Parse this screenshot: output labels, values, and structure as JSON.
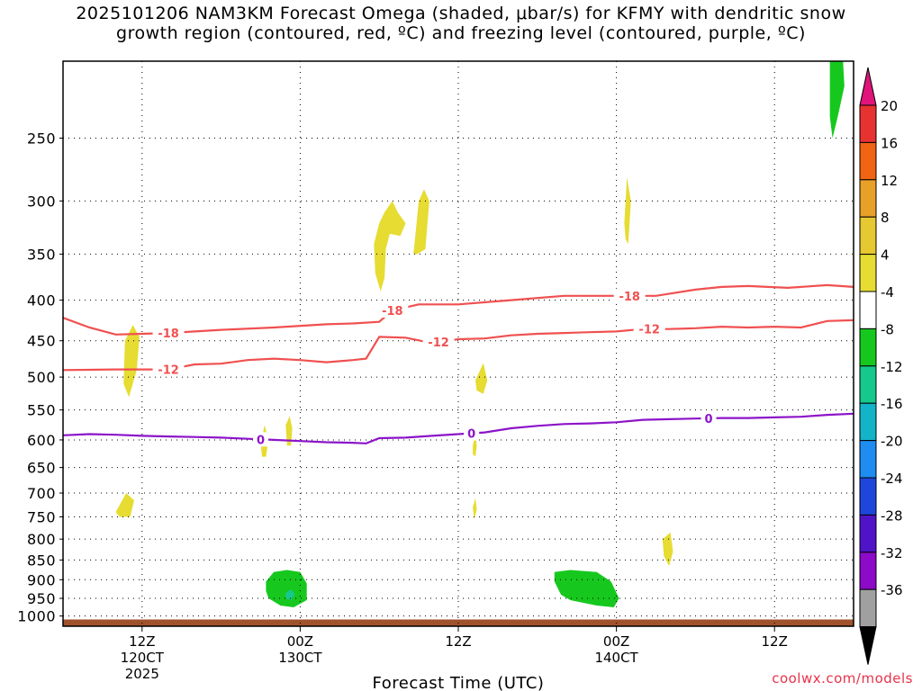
{
  "title": {
    "line1": "2025101206 NAM3KM Forecast Omega (shaded, μbar/s) for KFMY with dendritic snow",
    "line2": "growth region (contoured, red, ºC) and freezing level (contoured, purple, ºC)"
  },
  "credit": "coolwx.com/models",
  "chart_data": {
    "type": "heatmap",
    "xlabel": "Forecast Time (UTC)",
    "ylabel": "",
    "x_unit": "hours since 2025-10-12 06Z",
    "xlim": [
      0,
      60
    ],
    "ylim": [
      1030,
      200
    ],
    "y_scale": "log-pressure",
    "y_ticks": [
      250,
      300,
      350,
      400,
      450,
      500,
      550,
      600,
      650,
      700,
      750,
      800,
      850,
      900,
      950,
      1000
    ],
    "x_ticks": [
      {
        "x": 6,
        "lines": [
          "12Z",
          "120CT",
          "2025"
        ]
      },
      {
        "x": 18,
        "lines": [
          "00Z",
          "130CT"
        ]
      },
      {
        "x": 30,
        "lines": [
          "12Z"
        ]
      },
      {
        "x": 42,
        "lines": [
          "00Z",
          "140CT"
        ]
      },
      {
        "x": 54,
        "lines": [
          "12Z"
        ]
      }
    ],
    "grid": true,
    "colorbar": {
      "labels": [
        "20",
        "16",
        "12",
        "8",
        "4",
        "-4",
        "-8",
        "-12",
        "-16",
        "-20",
        "-24",
        "-28",
        "-32",
        "-36"
      ],
      "top_color": "#e0147a",
      "bottom_color": "#000000",
      "bands": [
        "#e83232",
        "#f06414",
        "#e8a028",
        "#e6c830",
        "#e6dc32",
        "#ffffff",
        "#16c81e",
        "#16c88c",
        "#14b4c8",
        "#1e8cf0",
        "#1e46dc",
        "#5014c8",
        "#8c0ac8",
        "#a0a0a0"
      ]
    },
    "contours": [
      {
        "name": "-18",
        "color": "#f05050",
        "label_x": [
          8.0,
          25.0,
          43.0
        ],
        "points": [
          [
            0,
            421
          ],
          [
            2,
            433
          ],
          [
            4,
            442
          ],
          [
            6,
            441
          ],
          [
            8,
            440
          ],
          [
            12,
            436
          ],
          [
            16,
            433
          ],
          [
            20,
            429
          ],
          [
            22,
            428
          ],
          [
            24,
            426
          ],
          [
            25,
            412
          ],
          [
            27,
            405
          ],
          [
            30,
            405
          ],
          [
            34,
            400
          ],
          [
            38,
            395
          ],
          [
            42,
            395
          ],
          [
            45,
            395
          ],
          [
            48,
            388
          ],
          [
            50,
            385
          ],
          [
            52,
            384
          ],
          [
            55,
            386
          ],
          [
            58,
            383
          ],
          [
            60,
            385
          ]
        ]
      },
      {
        "name": "-12",
        "color": "#f05050",
        "label_x": [
          8.0,
          28.5,
          44.5
        ],
        "points": [
          [
            0,
            490
          ],
          [
            4,
            489
          ],
          [
            6,
            489
          ],
          [
            8,
            489
          ],
          [
            10,
            482
          ],
          [
            12,
            481
          ],
          [
            14,
            476
          ],
          [
            16,
            474
          ],
          [
            18,
            476
          ],
          [
            20,
            479
          ],
          [
            22,
            476
          ],
          [
            23,
            474
          ],
          [
            24,
            445
          ],
          [
            26,
            446
          ],
          [
            28,
            453
          ],
          [
            30,
            448
          ],
          [
            32,
            447
          ],
          [
            34,
            443
          ],
          [
            36,
            441
          ],
          [
            38,
            440
          ],
          [
            40,
            439
          ],
          [
            42,
            438
          ],
          [
            44,
            435
          ],
          [
            46,
            435
          ],
          [
            48,
            434
          ],
          [
            50,
            432
          ],
          [
            52,
            433
          ],
          [
            54,
            432
          ],
          [
            56,
            433
          ],
          [
            58,
            425
          ],
          [
            60,
            424
          ]
        ]
      },
      {
        "name": "0",
        "color": "#8c14c8",
        "label_x": [
          15.0,
          31.0,
          49.0
        ],
        "points": [
          [
            0,
            592
          ],
          [
            2,
            590
          ],
          [
            4,
            591
          ],
          [
            6,
            593
          ],
          [
            8,
            594
          ],
          [
            10,
            595
          ],
          [
            12,
            596
          ],
          [
            14,
            598
          ],
          [
            16,
            600
          ],
          [
            18,
            602
          ],
          [
            20,
            604
          ],
          [
            22,
            605
          ],
          [
            23,
            606
          ],
          [
            24,
            597
          ],
          [
            26,
            596
          ],
          [
            28,
            593
          ],
          [
            30,
            590
          ],
          [
            32,
            587
          ],
          [
            34,
            580
          ],
          [
            36,
            576
          ],
          [
            38,
            573
          ],
          [
            40,
            572
          ],
          [
            42,
            570
          ],
          [
            44,
            566
          ],
          [
            46,
            565
          ],
          [
            48,
            564
          ],
          [
            50,
            563
          ],
          [
            52,
            563
          ],
          [
            54,
            562
          ],
          [
            56,
            561
          ],
          [
            58,
            558
          ],
          [
            60,
            556
          ]
        ]
      }
    ],
    "shaded_regions": [
      {
        "value": 4,
        "color": "#e6dc32",
        "points": [
          [
            4.7,
            450
          ],
          [
            5.3,
            430
          ],
          [
            5.8,
            445
          ],
          [
            5.6,
            490
          ],
          [
            5.0,
            530
          ],
          [
            4.6,
            510
          ]
        ]
      },
      {
        "value": 4,
        "color": "#e6dc32",
        "points": [
          [
            4.0,
            740
          ],
          [
            4.8,
            700
          ],
          [
            5.4,
            715
          ],
          [
            5.1,
            750
          ],
          [
            4.3,
            750
          ]
        ]
      },
      {
        "value": 4,
        "color": "#e6dc32",
        "points": [
          [
            15.0,
            605
          ],
          [
            15.3,
            575
          ],
          [
            15.6,
            600
          ],
          [
            15.4,
            630
          ],
          [
            15.1,
            630
          ]
        ]
      },
      {
        "value": 4,
        "color": "#e6dc32",
        "points": [
          [
            16.9,
            575
          ],
          [
            17.2,
            560
          ],
          [
            17.4,
            580
          ],
          [
            17.3,
            610
          ],
          [
            17.0,
            610
          ]
        ]
      },
      {
        "value": 4,
        "color": "#e6dc32",
        "points": [
          [
            23.6,
            340
          ],
          [
            24.0,
            320
          ],
          [
            24.4,
            310
          ],
          [
            25.0,
            300
          ],
          [
            25.4,
            310
          ],
          [
            26.0,
            320
          ],
          [
            25.6,
            332
          ],
          [
            24.8,
            330
          ],
          [
            24.5,
            345
          ],
          [
            24.4,
            375
          ],
          [
            24.1,
            390
          ],
          [
            23.7,
            370
          ]
        ]
      },
      {
        "value": 4,
        "color": "#e6dc32",
        "points": [
          [
            26.6,
            350
          ],
          [
            27.0,
            300
          ],
          [
            27.4,
            290
          ],
          [
            27.8,
            300
          ],
          [
            27.5,
            345
          ],
          [
            26.9,
            350
          ]
        ]
      },
      {
        "value": 4,
        "color": "#e6dc32",
        "points": [
          [
            42.6,
            320
          ],
          [
            42.8,
            280
          ],
          [
            43.1,
            300
          ],
          [
            42.9,
            340
          ],
          [
            42.7,
            335
          ]
        ]
      },
      {
        "value": 4,
        "color": "#e6dc32",
        "points": [
          [
            31.3,
            505
          ],
          [
            31.9,
            480
          ],
          [
            32.2,
            505
          ],
          [
            31.9,
            525
          ],
          [
            31.4,
            520
          ]
        ]
      },
      {
        "value": 4,
        "color": "#e6dc32",
        "points": [
          [
            31.1,
            610
          ],
          [
            31.3,
            590
          ],
          [
            31.4,
            610
          ],
          [
            31.3,
            630
          ],
          [
            31.1,
            625
          ]
        ]
      },
      {
        "value": 4,
        "color": "#e6dc32",
        "points": [
          [
            31.1,
            730
          ],
          [
            31.3,
            710
          ],
          [
            31.4,
            735
          ],
          [
            31.2,
            755
          ]
        ]
      },
      {
        "value": 4,
        "color": "#e6dc32",
        "points": [
          [
            45.5,
            800
          ],
          [
            46.1,
            785
          ],
          [
            46.3,
            830
          ],
          [
            46.0,
            865
          ],
          [
            45.6,
            840
          ]
        ]
      },
      {
        "value": -4,
        "color": "#16c81e",
        "points": [
          [
            15.4,
            905
          ],
          [
            16.0,
            880
          ],
          [
            17.0,
            875
          ],
          [
            18.0,
            880
          ],
          [
            18.5,
            910
          ],
          [
            18.5,
            955
          ],
          [
            17.5,
            975
          ],
          [
            16.5,
            970
          ],
          [
            15.6,
            950
          ],
          [
            15.4,
            930
          ]
        ]
      },
      {
        "value": -8,
        "color": "#16c88c",
        "points": [
          [
            16.9,
            935
          ],
          [
            17.3,
            925
          ],
          [
            17.6,
            940
          ],
          [
            17.3,
            955
          ],
          [
            16.9,
            950
          ]
        ]
      },
      {
        "value": -4,
        "color": "#16c81e",
        "points": [
          [
            37.3,
            880
          ],
          [
            38.5,
            875
          ],
          [
            40.5,
            880
          ],
          [
            41.6,
            905
          ],
          [
            42.2,
            950
          ],
          [
            41.8,
            975
          ],
          [
            40.5,
            970
          ],
          [
            38.5,
            955
          ],
          [
            37.8,
            940
          ],
          [
            37.3,
            905
          ]
        ]
      },
      {
        "value": -4,
        "color": "#16c81e",
        "points": [
          [
            58.2,
            200
          ],
          [
            59.2,
            200
          ],
          [
            59.3,
            215
          ],
          [
            58.8,
            235
          ],
          [
            58.4,
            250
          ],
          [
            58.2,
            235
          ]
        ]
      }
    ],
    "surface": {
      "color": "#a0522d",
      "pressure_start": 1010
    }
  }
}
